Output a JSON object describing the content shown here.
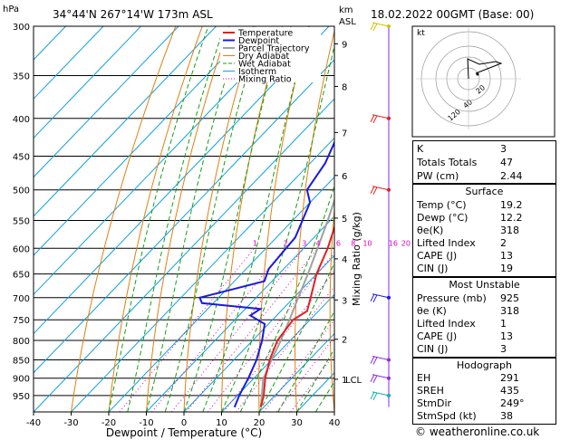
{
  "header": {
    "hpa_label": "hPa",
    "location": "34°44'N  267°14'W  173m  ASL",
    "km_label": "km",
    "asl_label": "ASL",
    "datetime": "18.02.2022  00GMT  (Base: 00)"
  },
  "legend": [
    "Temperature",
    "Dewpoint",
    "Parcel Trajectory",
    "Dry Adiabat",
    "Wet Adiabat",
    "Isotherm",
    "Mixing Ratio"
  ],
  "colors": {
    "temperature": "#e02020",
    "dewpoint": "#1a1ae0",
    "parcel": "#a0a0a0",
    "dry_adiabat": "#e08010",
    "wet_adiabat": "#10a010",
    "isotherm": "#10a0e0",
    "mixing_ratio": "#e000c0"
  },
  "chart_data": {
    "type": "skew-t",
    "xlabel": "Dewpoint / Temperature (°C)",
    "ylabel": "hPa",
    "right_axis_label": "Mixing Ratio (g/kg)",
    "x_ticks": [
      -40,
      -30,
      -20,
      -10,
      0,
      10,
      20,
      30,
      40
    ],
    "pressure_levels": [
      300,
      350,
      400,
      450,
      500,
      550,
      600,
      650,
      700,
      750,
      800,
      850,
      900,
      950
    ],
    "km_ticks": [
      {
        "label": "9",
        "p": 317
      },
      {
        "label": "8",
        "p": 362
      },
      {
        "label": "7",
        "p": 418
      },
      {
        "label": "6",
        "p": 478
      },
      {
        "label": "5",
        "p": 546
      },
      {
        "label": "4",
        "p": 620
      },
      {
        "label": "3",
        "p": 705
      },
      {
        "label": "2",
        "p": 797
      },
      {
        "label": "1",
        "p": 903
      }
    ],
    "lcl_label": "LCL",
    "lcl_p": 903,
    "mixing_ratio_labels": [
      "1",
      "2",
      "3",
      "4",
      "6",
      "8",
      "10",
      "16",
      "20",
      "25"
    ],
    "mixing_ratio_values": [
      1,
      2,
      3,
      4,
      6,
      8,
      10,
      16,
      20,
      25
    ],
    "temperature": [
      [
        985,
        19.2
      ],
      [
        950,
        17.0
      ],
      [
        900,
        13.0
      ],
      [
        850,
        9.5
      ],
      [
        800,
        6.6
      ],
      [
        750,
        5.5
      ],
      [
        730,
        7.0
      ],
      [
        700,
        4.5
      ],
      [
        650,
        0.0
      ],
      [
        600,
        -3.6
      ],
      [
        550,
        -8.3
      ],
      [
        500,
        -12.7
      ],
      [
        450,
        -18.4
      ],
      [
        400,
        -23.2
      ],
      [
        350,
        -30.5
      ],
      [
        300,
        -38.0
      ]
    ],
    "dewpoint": [
      [
        985,
        12.2
      ],
      [
        950,
        10.5
      ],
      [
        900,
        8.5
      ],
      [
        850,
        6.0
      ],
      [
        800,
        2.5
      ],
      [
        760,
        -1.0
      ],
      [
        740,
        -7.0
      ],
      [
        725,
        -6.0
      ],
      [
        712,
        -23.0
      ],
      [
        700,
        -25.0
      ],
      [
        665,
        -12.0
      ],
      [
        640,
        -14.0
      ],
      [
        610,
        -14.5
      ],
      [
        580,
        -15.0
      ],
      [
        555,
        -17.0
      ],
      [
        520,
        -20.0
      ],
      [
        500,
        -24.0
      ],
      [
        460,
        -26.0
      ],
      [
        420,
        -30.0
      ],
      [
        380,
        -37.0
      ],
      [
        340,
        -44.0
      ],
      [
        300,
        -50.0
      ]
    ],
    "parcel": [
      [
        985,
        19.2
      ],
      [
        903,
        12.7
      ],
      [
        850,
        10.0
      ],
      [
        800,
        7.5
      ],
      [
        750,
        4.5
      ],
      [
        700,
        1.2
      ],
      [
        650,
        -2.3
      ],
      [
        600,
        -6.3
      ],
      [
        550,
        -10.7
      ],
      [
        500,
        -15.8
      ],
      [
        450,
        -21.5
      ],
      [
        400,
        -28.0
      ],
      [
        350,
        -36.0
      ],
      [
        300,
        -45.0
      ]
    ],
    "x_range": [
      -40,
      40
    ],
    "p_range": [
      300,
      1000
    ]
  },
  "hodograph": {
    "label": "kt",
    "ring_labels": [
      "20",
      "40"
    ],
    "ring_label_extra": "120"
  },
  "indices": [
    {
      "key": "K",
      "value": "3"
    },
    {
      "key": "Totals Totals",
      "value": "47"
    },
    {
      "key": "PW (cm)",
      "value": "2.44"
    }
  ],
  "surface": {
    "title": "Surface",
    "rows": [
      {
        "key": "Temp (°C)",
        "value": "19.2"
      },
      {
        "key": "Dewp (°C)",
        "value": "12.2"
      },
      {
        "key": "θe(K)",
        "value": "318"
      },
      {
        "key": "Lifted Index",
        "value": "2"
      },
      {
        "key": "CAPE (J)",
        "value": "13"
      },
      {
        "key": "CIN (J)",
        "value": "19"
      }
    ]
  },
  "most_unstable": {
    "title": "Most Unstable",
    "rows": [
      {
        "key": "Pressure (mb)",
        "value": "925"
      },
      {
        "key": "θe (K)",
        "value": "318"
      },
      {
        "key": "Lifted Index",
        "value": "1"
      },
      {
        "key": "CAPE (J)",
        "value": "13"
      },
      {
        "key": "CIN (J)",
        "value": "3"
      }
    ]
  },
  "hodograph_stats": {
    "title": "Hodograph",
    "rows": [
      {
        "key": "EH",
        "value": "291"
      },
      {
        "key": "SREH",
        "value": "435"
      },
      {
        "key": "StmDir",
        "value": "249°"
      },
      {
        "key": "StmSpd (kt)",
        "value": "38"
      }
    ]
  },
  "copyright": "© weatheronline.co.uk"
}
